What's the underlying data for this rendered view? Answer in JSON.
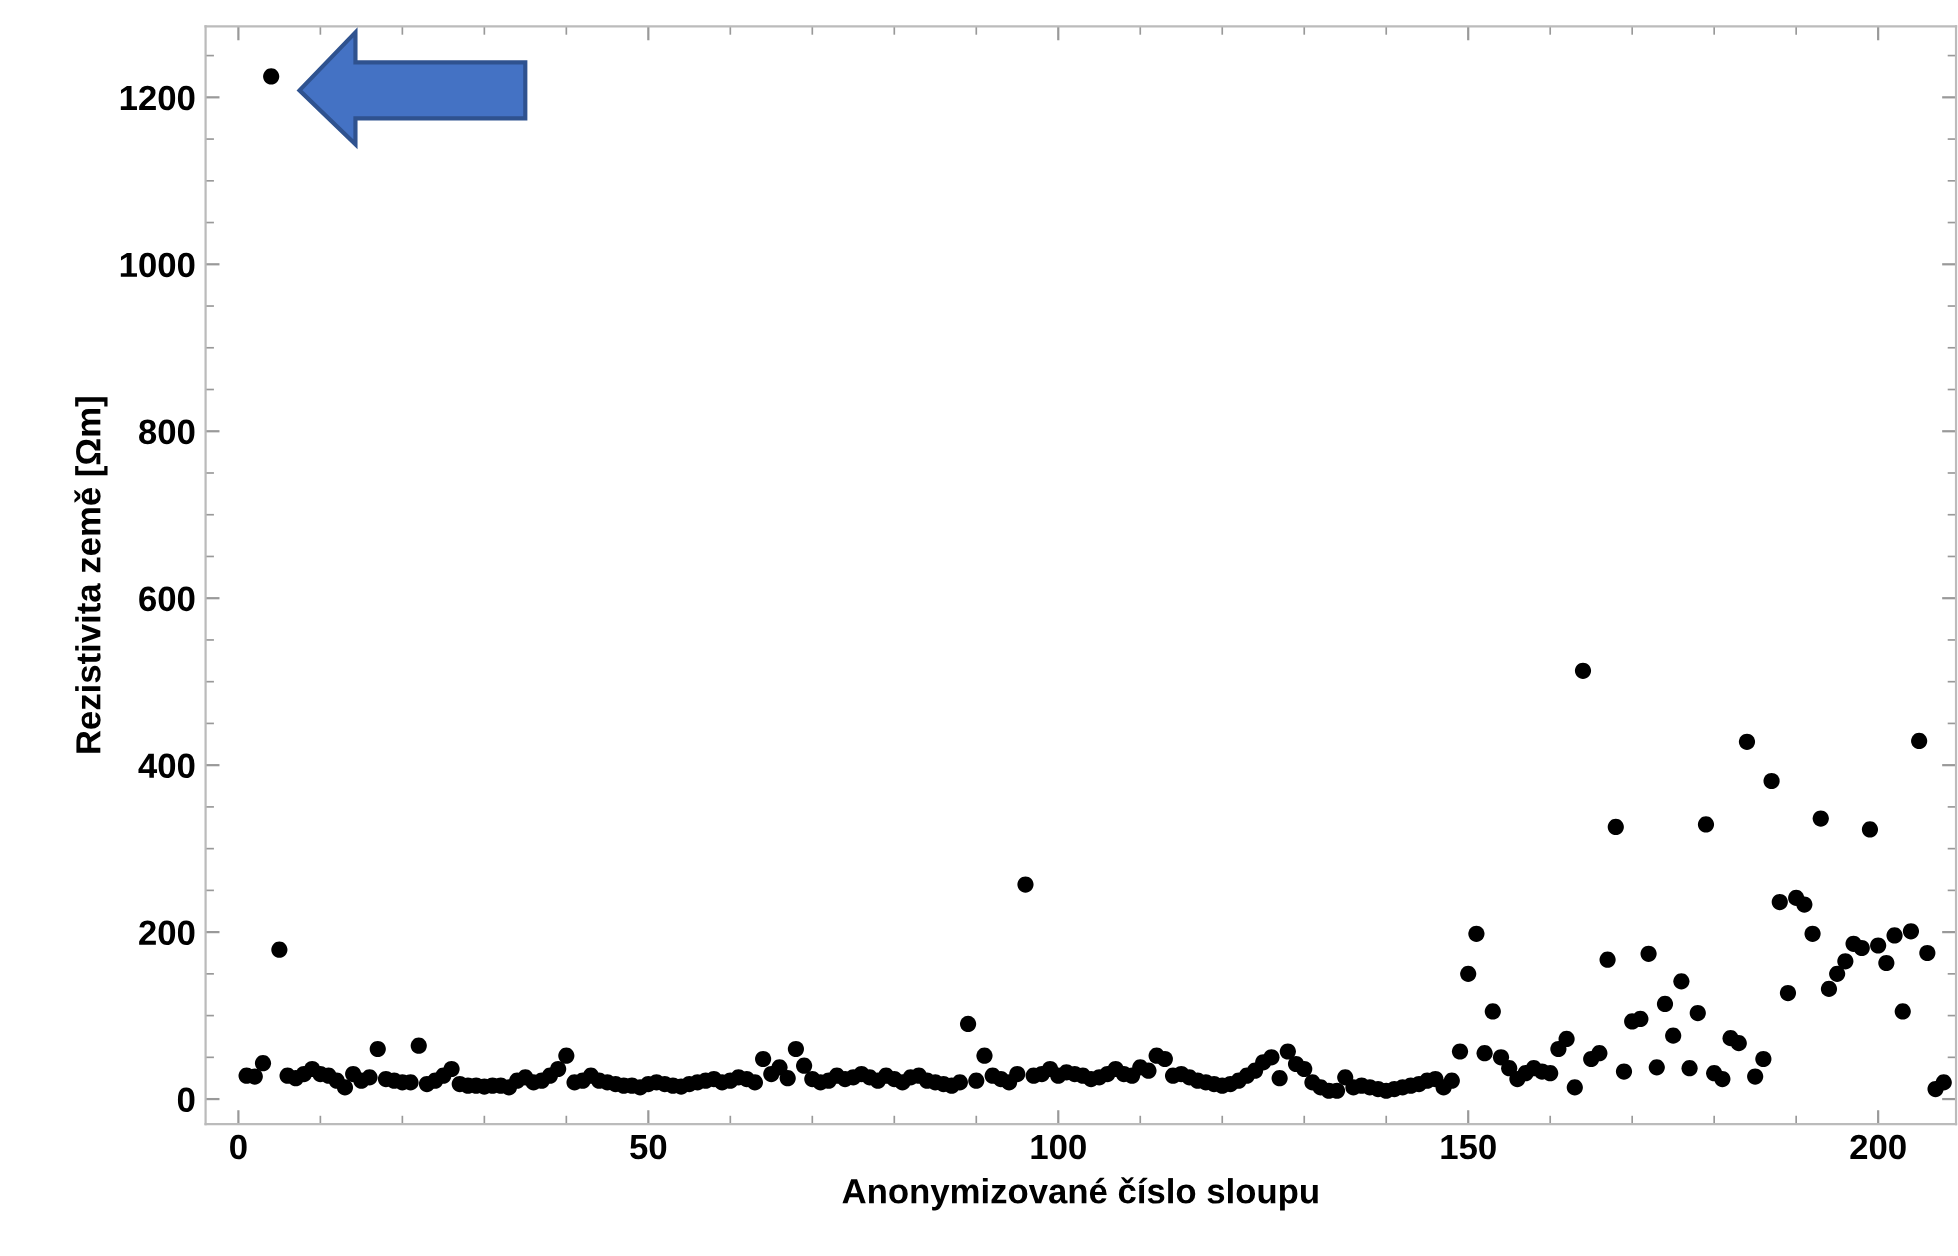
{
  "chart_data": {
    "type": "scatter",
    "xlabel": "Anonymizované číslo sloupu",
    "ylabel": "Rezistivita země [Ωm]",
    "xlim": [
      -4,
      209.5
    ],
    "ylim": [
      -30,
      1285
    ],
    "xticks": [
      0,
      50,
      100,
      150,
      200
    ],
    "yticks": [
      0,
      200,
      400,
      600,
      800,
      1000,
      1200
    ],
    "grid": false,
    "marker": "circle",
    "series": [
      {
        "color": "#000000",
        "x": [
          1,
          2,
          3,
          4,
          5,
          6,
          7,
          8,
          9,
          10,
          11,
          12,
          13,
          14,
          15,
          16,
          17,
          18,
          19,
          20,
          21,
          22,
          23,
          24,
          25,
          26,
          27,
          28,
          29,
          30,
          31,
          32,
          33,
          34,
          35,
          36,
          37,
          38,
          39,
          40,
          41,
          42,
          43,
          44,
          45,
          46,
          47,
          48,
          49,
          50,
          51,
          52,
          53,
          54,
          55,
          56,
          57,
          58,
          59,
          60,
          61,
          62,
          63,
          64,
          65,
          66,
          67,
          68,
          69,
          70,
          71,
          72,
          73,
          74,
          75,
          76,
          77,
          78,
          79,
          80,
          81,
          82,
          83,
          84,
          85,
          86,
          87,
          88,
          89,
          90,
          91,
          92,
          93,
          94,
          95,
          96,
          97,
          98,
          99,
          100,
          101,
          102,
          103,
          104,
          105,
          106,
          107,
          108,
          109,
          110,
          111,
          112,
          113,
          114,
          115,
          116,
          117,
          118,
          119,
          120,
          121,
          122,
          123,
          124,
          125,
          126,
          127,
          128,
          129,
          130,
          131,
          132,
          133,
          134,
          135,
          136,
          137,
          138,
          139,
          140,
          141,
          142,
          143,
          144,
          145,
          146,
          147,
          148,
          149,
          150,
          151,
          152,
          153,
          154,
          155,
          156,
          157,
          158,
          159,
          160,
          161,
          162,
          163,
          164,
          165,
          166,
          167,
          168,
          169,
          170,
          171,
          172,
          173,
          174,
          175,
          176,
          177,
          178,
          179,
          180,
          181,
          182,
          183,
          184,
          185,
          186,
          187,
          188,
          189,
          190,
          191,
          192,
          193,
          194,
          195,
          196,
          197,
          198,
          199,
          200,
          201,
          202,
          203,
          204,
          205,
          206,
          207,
          208
        ],
        "values": [
          28,
          27,
          43,
          1225,
          179,
          28,
          25,
          30,
          36,
          30,
          28,
          22,
          14,
          30,
          22,
          26,
          60,
          24,
          22,
          20,
          20,
          64,
          18,
          22,
          28,
          36,
          18,
          16,
          16,
          15,
          16,
          16,
          14,
          22,
          26,
          20,
          22,
          28,
          36,
          52,
          20,
          22,
          28,
          22,
          20,
          18,
          16,
          16,
          14,
          18,
          20,
          18,
          16,
          15,
          18,
          20,
          22,
          24,
          20,
          22,
          26,
          24,
          20,
          48,
          30,
          38,
          25,
          60,
          40,
          24,
          20,
          22,
          28,
          24,
          26,
          30,
          26,
          22,
          28,
          24,
          20,
          26,
          28,
          22,
          20,
          18,
          16,
          20,
          90,
          22,
          52,
          28,
          24,
          20,
          30,
          257,
          28,
          30,
          36,
          28,
          32,
          30,
          28,
          24,
          26,
          30,
          36,
          30,
          28,
          38,
          34,
          52,
          48,
          28,
          30,
          26,
          22,
          20,
          18,
          16,
          18,
          22,
          28,
          34,
          44,
          50,
          25,
          57,
          42,
          36,
          20,
          14,
          10,
          10,
          26,
          14,
          16,
          14,
          12,
          10,
          12,
          14,
          16,
          18,
          22,
          24,
          14,
          22,
          57,
          150,
          198,
          55,
          105,
          50,
          37,
          24,
          31,
          37,
          33,
          31,
          60,
          72,
          14,
          513,
          48,
          55,
          167,
          326,
          33,
          93,
          96,
          174,
          38,
          114,
          76,
          141,
          37,
          103,
          329,
          31,
          24,
          73,
          67,
          428,
          27,
          48,
          381,
          236,
          127,
          241,
          233,
          198,
          336,
          132,
          150,
          165,
          186,
          181,
          323,
          184,
          163,
          196,
          105,
          201,
          429,
          175,
          12,
          20
        ]
      }
    ]
  }
}
